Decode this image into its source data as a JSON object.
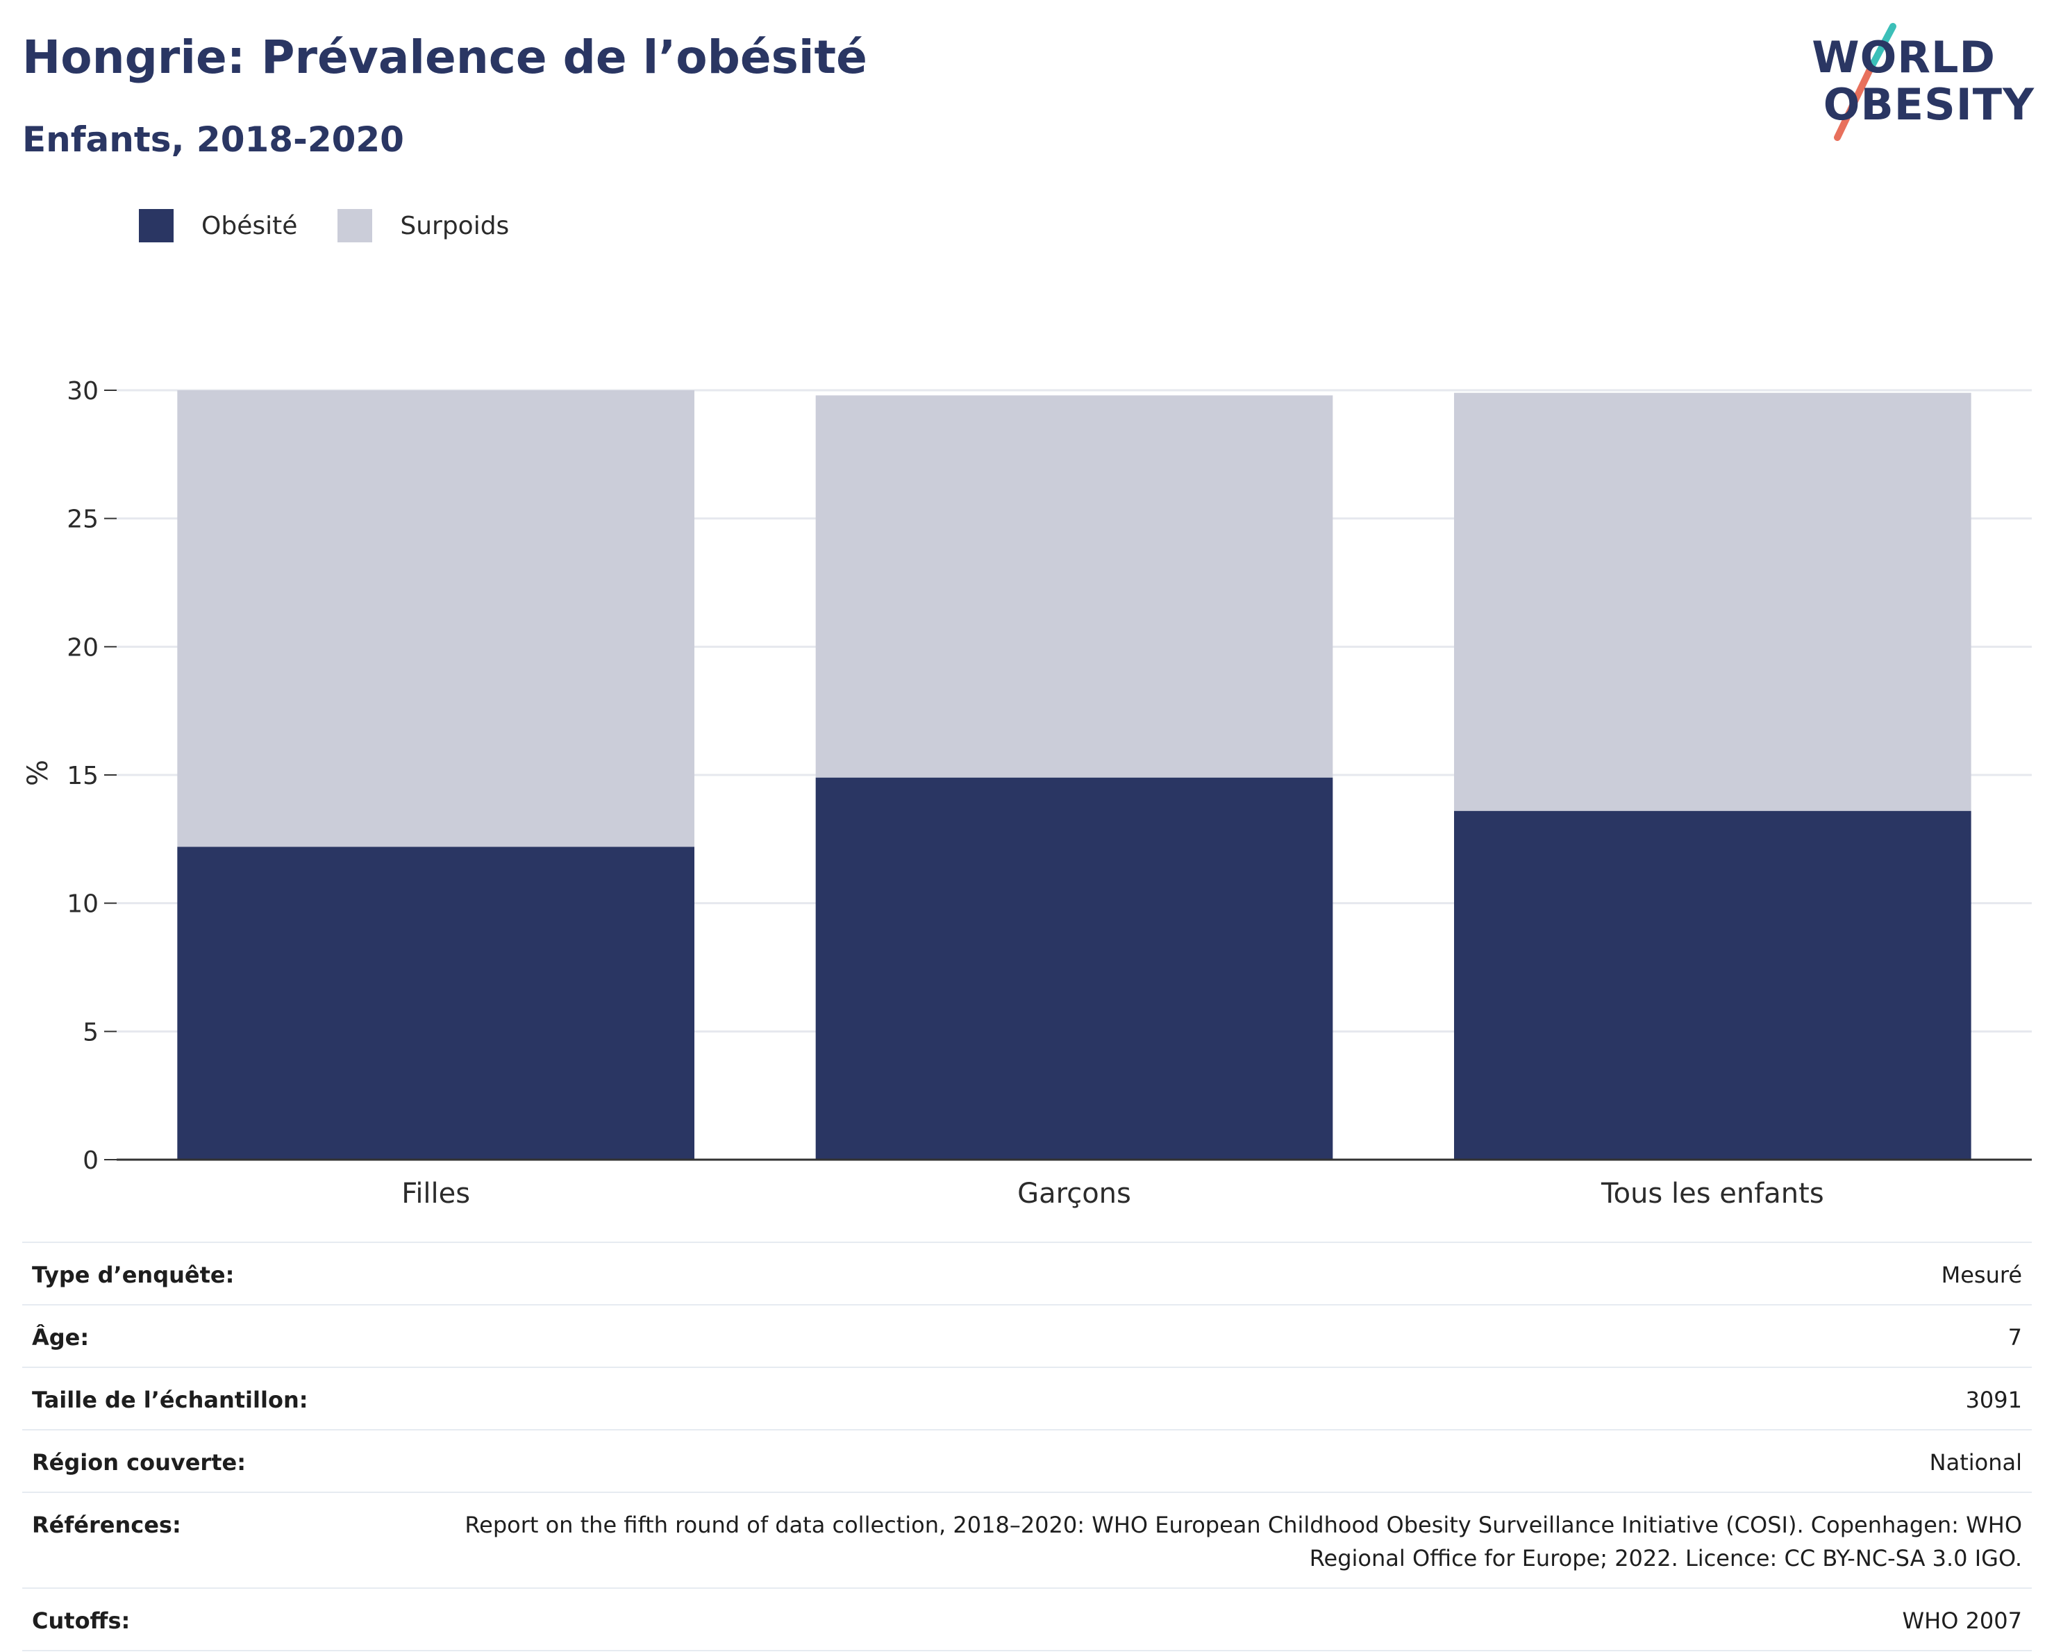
{
  "header": {
    "title": "Hongrie: Prévalence de l’obésité",
    "subtitle": "Enfants, 2018-2020"
  },
  "logo": {
    "line1": "WORLD",
    "line2": "OBESITY"
  },
  "colors": {
    "obesity": "#2a3663",
    "overweight": "#cbcdd9",
    "text": "#2a3663",
    "logo_teal": "#3bbfb8",
    "logo_coral": "#e8705c"
  },
  "chart_data": {
    "type": "bar",
    "stacked": true,
    "categories": [
      "Filles",
      "Garçons",
      "Tous les enfants"
    ],
    "series": [
      {
        "name": "Obésité",
        "values": [
          12.2,
          14.9,
          13.6
        ]
      },
      {
        "name": "Surpoids",
        "values": [
          17.8,
          14.9,
          16.3
        ]
      }
    ],
    "ylabel": "%",
    "ylim": [
      0,
      30
    ],
    "yticks": [
      0,
      5,
      10,
      15,
      20,
      25,
      30
    ],
    "grid": true,
    "legend_position": "top-left"
  },
  "metadata": [
    {
      "key": "Type d’enquête:",
      "value": "Mesuré"
    },
    {
      "key": "Âge:",
      "value": "7"
    },
    {
      "key": "Taille de l’échantillon:",
      "value": "3091"
    },
    {
      "key": "Région couverte:",
      "value": "National"
    },
    {
      "key": "Références:",
      "value": "Report on the fifth round of data collection, 2018–2020: WHO European Childhood Obesity Surveillance Initiative (COSI). Copenhagen: WHO Regional Office for Europe; 2022. Licence: CC BY-NC-SA 3.0 IGO."
    },
    {
      "key": "Cutoffs:",
      "value": "WHO 2007"
    }
  ]
}
